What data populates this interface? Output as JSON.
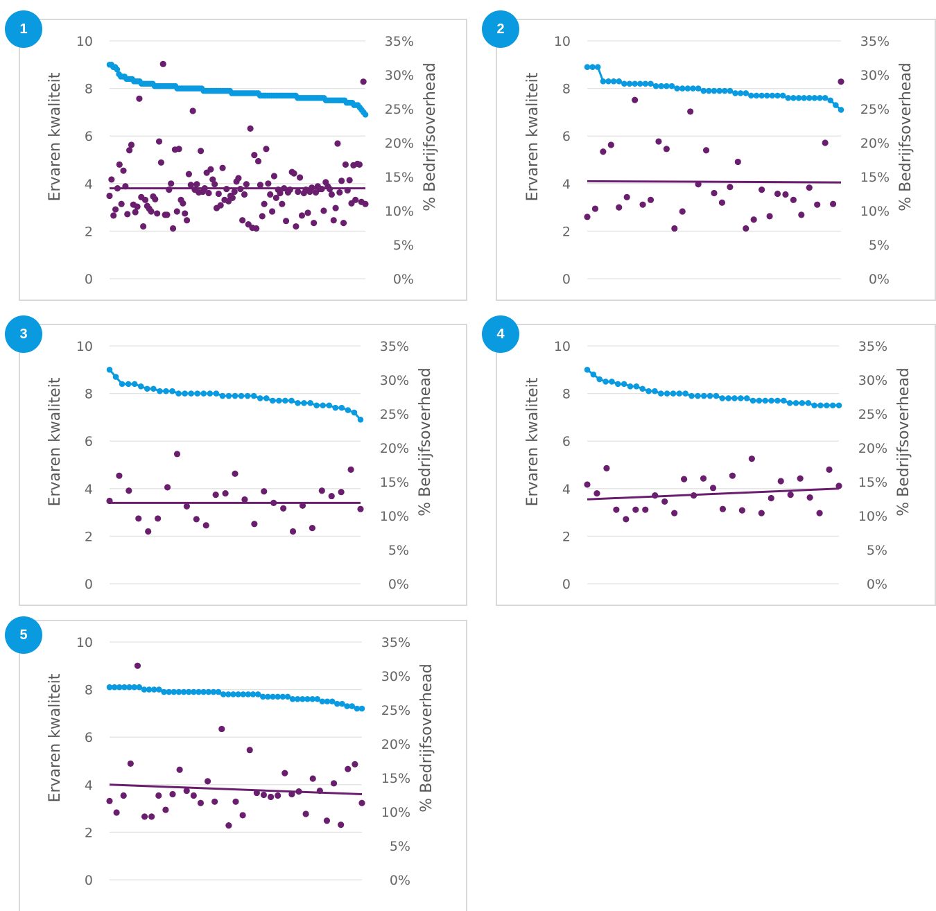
{
  "colors": {
    "quality": "#0a9ae0",
    "overhead": "#6a1f6e",
    "grid": "#e3e3e3",
    "axis_text": "#666666",
    "badge": "#0a9ae0",
    "frame": "#d9d9d9"
  },
  "chart_data": [
    {
      "type": "scatter",
      "badge": "1",
      "ylabel": "Ervaren kwaliteit",
      "y2label": "% Bedrijfsoverhead",
      "yticks": [
        "0",
        "2",
        "4",
        "6",
        "8",
        "10"
      ],
      "y2ticks": [
        "0%",
        "5%",
        "10%",
        "15%",
        "20%",
        "25%",
        "30%",
        "35%"
      ],
      "ylim": [
        0,
        10
      ],
      "y2lim": [
        0,
        35
      ],
      "grid": true,
      "series": [
        {
          "role": "quality",
          "values": [
            9.0,
            9.0,
            8.9,
            8.9,
            8.8,
            8.6,
            8.5,
            8.5,
            8.5,
            8.4,
            8.4,
            8.4,
            8.4,
            8.3,
            8.3,
            8.3,
            8.3,
            8.2,
            8.2,
            8.2,
            8.2,
            8.2,
            8.2,
            8.2,
            8.1,
            8.1,
            8.1,
            8.1,
            8.1,
            8.1,
            8.1,
            8.1,
            8.1,
            8.1,
            8.1,
            8.1,
            8.0,
            8.0,
            8.0,
            8.0,
            8.0,
            8.0,
            8.0,
            8.0,
            8.0,
            8.0,
            8.0,
            8.0,
            8.0,
            8.0,
            7.9,
            7.9,
            7.9,
            7.9,
            7.9,
            7.9,
            7.9,
            7.9,
            7.9,
            7.9,
            7.9,
            7.9,
            7.9,
            7.9,
            7.9,
            7.8,
            7.8,
            7.8,
            7.8,
            7.8,
            7.8,
            7.8,
            7.8,
            7.8,
            7.8,
            7.8,
            7.8,
            7.8,
            7.8,
            7.8,
            7.7,
            7.7,
            7.7,
            7.7,
            7.7,
            7.7,
            7.7,
            7.7,
            7.7,
            7.7,
            7.7,
            7.7,
            7.7,
            7.7,
            7.7,
            7.7,
            7.7,
            7.7,
            7.7,
            7.7,
            7.6,
            7.6,
            7.6,
            7.6,
            7.6,
            7.6,
            7.6,
            7.6,
            7.6,
            7.6,
            7.6,
            7.6,
            7.6,
            7.6,
            7.6,
            7.5,
            7.5,
            7.5,
            7.5,
            7.5,
            7.5,
            7.5,
            7.5,
            7.5,
            7.5,
            7.5,
            7.4,
            7.4,
            7.4,
            7.4,
            7.3,
            7.3,
            7.3,
            7.2,
            7.1,
            7.0,
            6.9
          ]
        },
        {
          "role": "overhead",
          "values": [
            12.2,
            14.6,
            9.3,
            10.2,
            13.3,
            16.8,
            11.0,
            15.9,
            13.6,
            9.5,
            18.9,
            19.7,
            10.9,
            9.8,
            10.6,
            26.5,
            12.0,
            7.7,
            11.6,
            10.7,
            10.3,
            9.9,
            12.1,
            11.7,
            9.6,
            20.2,
            17.1,
            31.6,
            9.4,
            9.4,
            13.1,
            14.0,
            7.4,
            19.0,
            9.9,
            19.1,
            11.6,
            11.1,
            9.6,
            8.6,
            15.4,
            13.8,
            24.7,
            13.1,
            13.9,
            12.7,
            18.8,
            12.8,
            13.3,
            15.6,
            12.6,
            16.1,
            14.6,
            13.9,
            10.4,
            12.5,
            10.8,
            16.3,
            11.6,
            13.2,
            11.4,
            12.2,
            11.9,
            12.8,
            14.3,
            14.8,
            13.2,
            8.6,
            12.4,
            13.9,
            8.0,
            22.1,
            7.5,
            18.2,
            7.4,
            17.3,
            13.8,
            9.2,
            11.0,
            19.1,
            14.0,
            12.4,
            9.9,
            15.1,
            11.9,
            13.1,
            12.6,
            11.0,
            13.3,
            8.5,
            12.7,
            13.1,
            15.7,
            15.5,
            7.7,
            12.8,
            14.9,
            9.3,
            12.6,
            13.1,
            9.7,
            12.8,
            13.4,
            8.2,
            12.7,
            13.6,
            13.2,
            13.2,
            10.0,
            14.2,
            13.6,
            13.2,
            12.4,
            8.6,
            10.4,
            19.9,
            12.7,
            14.4,
            8.2,
            16.8,
            13.0,
            14.5,
            11.1,
            16.7,
            11.6,
            16.9,
            16.8,
            11.3,
            29.0,
            11.0
          ]
        }
      ],
      "trend": {
        "start": 3.8,
        "end": 3.8
      }
    },
    {
      "type": "scatter",
      "badge": "2",
      "ylabel": "Ervaren kwaliteit",
      "y2label": "% Bedrijfsoverhead",
      "yticks": [
        "0",
        "2",
        "4",
        "6",
        "8",
        "10"
      ],
      "y2ticks": [
        "0%",
        "5%",
        "10%",
        "15%",
        "20%",
        "25%",
        "30%",
        "35%"
      ],
      "ylim": [
        0,
        10
      ],
      "y2lim": [
        0,
        35
      ],
      "grid": true,
      "series": [
        {
          "role": "quality",
          "values": [
            8.9,
            8.9,
            8.9,
            8.3,
            8.3,
            8.3,
            8.3,
            8.2,
            8.2,
            8.2,
            8.2,
            8.2,
            8.2,
            8.1,
            8.1,
            8.1,
            8.1,
            8.0,
            8.0,
            8.0,
            8.0,
            8.0,
            7.9,
            7.9,
            7.9,
            7.9,
            7.9,
            7.9,
            7.8,
            7.8,
            7.8,
            7.7,
            7.7,
            7.7,
            7.7,
            7.7,
            7.7,
            7.7,
            7.6,
            7.6,
            7.6,
            7.6,
            7.6,
            7.6,
            7.6,
            7.6,
            7.5,
            7.3,
            7.1
          ]
        },
        {
          "role": "overhead",
          "values": [
            9.1,
            10.3,
            18.7,
            19.7,
            10.5,
            12.0,
            26.3,
            10.9,
            11.6,
            20.2,
            19.1,
            7.4,
            9.9,
            24.6,
            13.9,
            18.9,
            12.6,
            11.2,
            13.5,
            17.2,
            7.4,
            8.7,
            13.1,
            9.2,
            12.5,
            12.4,
            11.6,
            9.4,
            13.4,
            10.9,
            20.0,
            11.0,
            29.0
          ]
        }
      ],
      "trend": {
        "start": 4.1,
        "end": 4.05
      }
    },
    {
      "type": "scatter",
      "badge": "3",
      "ylabel": "Ervaren kwaliteit",
      "y2label": "% Bedrijfsoverhead",
      "yticks": [
        "0",
        "2",
        "4",
        "6",
        "8",
        "10"
      ],
      "y2ticks": [
        "0%",
        "5%",
        "10%",
        "15%",
        "20%",
        "25%",
        "30%",
        "35%"
      ],
      "ylim": [
        0,
        10
      ],
      "y2lim": [
        0,
        35
      ],
      "grid": true,
      "series": [
        {
          "role": "quality",
          "values": [
            9.0,
            8.7,
            8.4,
            8.4,
            8.4,
            8.3,
            8.2,
            8.2,
            8.1,
            8.1,
            8.1,
            8.0,
            8.0,
            8.0,
            8.0,
            8.0,
            8.0,
            8.0,
            7.9,
            7.9,
            7.9,
            7.9,
            7.9,
            7.9,
            7.8,
            7.8,
            7.7,
            7.7,
            7.7,
            7.7,
            7.6,
            7.6,
            7.6,
            7.5,
            7.5,
            7.5,
            7.4,
            7.4,
            7.3,
            7.2,
            6.9
          ]
        },
        {
          "role": "overhead",
          "values": [
            12.2,
            15.9,
            13.7,
            9.6,
            7.7,
            9.6,
            14.2,
            19.1,
            11.4,
            9.5,
            8.6,
            13.1,
            13.3,
            16.2,
            12.4,
            8.8,
            13.6,
            11.9,
            11.1,
            7.7,
            11.5,
            8.2,
            13.7,
            12.9,
            13.5,
            16.8,
            11.0
          ]
        }
      ],
      "trend": {
        "start": 3.4,
        "end": 3.4
      }
    },
    {
      "type": "scatter",
      "badge": "4",
      "ylabel": "Ervaren kwaliteit",
      "y2label": "% Bedrijfsoverhead",
      "yticks": [
        "0",
        "2",
        "4",
        "6",
        "8",
        "10"
      ],
      "y2ticks": [
        "0%",
        "5%",
        "10%",
        "15%",
        "20%",
        "25%",
        "30%",
        "35%"
      ],
      "ylim": [
        0,
        10
      ],
      "y2lim": [
        0,
        35
      ],
      "grid": true,
      "series": [
        {
          "role": "quality",
          "values": [
            9.0,
            8.8,
            8.6,
            8.5,
            8.5,
            8.4,
            8.4,
            8.3,
            8.3,
            8.2,
            8.1,
            8.1,
            8.0,
            8.0,
            8.0,
            8.0,
            8.0,
            7.9,
            7.9,
            7.9,
            7.9,
            7.9,
            7.8,
            7.8,
            7.8,
            7.8,
            7.8,
            7.7,
            7.7,
            7.7,
            7.7,
            7.7,
            7.7,
            7.6,
            7.6,
            7.6,
            7.6,
            7.5,
            7.5,
            7.5,
            7.5,
            7.5
          ]
        },
        {
          "role": "overhead",
          "values": [
            14.6,
            13.3,
            17.0,
            10.9,
            9.5,
            10.9,
            10.9,
            13.0,
            12.1,
            10.4,
            15.4,
            13.0,
            15.5,
            14.1,
            11.0,
            15.9,
            10.8,
            18.4,
            10.4,
            12.6,
            15.1,
            13.1,
            15.5,
            12.7,
            10.4,
            16.8,
            14.4
          ]
        }
      ],
      "trend": {
        "start": 3.55,
        "end": 4.0
      }
    },
    {
      "type": "scatter",
      "badge": "5",
      "ylabel": "Ervaren kwaliteit",
      "y2label": "% Bedrijfsoverhead",
      "yticks": [
        "0",
        "2",
        "4",
        "6",
        "8",
        "10"
      ],
      "y2ticks": [
        "0%",
        "5%",
        "10%",
        "15%",
        "20%",
        "25%",
        "30%",
        "35%"
      ],
      "ylim": [
        0,
        10
      ],
      "y2lim": [
        0,
        35
      ],
      "grid": true,
      "series": [
        {
          "role": "quality",
          "values": [
            8.1,
            8.1,
            8.1,
            8.1,
            8.1,
            8.1,
            8.1,
            8.0,
            8.0,
            8.0,
            8.0,
            7.9,
            7.9,
            7.9,
            7.9,
            7.9,
            7.9,
            7.9,
            7.9,
            7.9,
            7.9,
            7.9,
            7.9,
            7.8,
            7.8,
            7.8,
            7.8,
            7.8,
            7.8,
            7.8,
            7.8,
            7.7,
            7.7,
            7.7,
            7.7,
            7.7,
            7.7,
            7.6,
            7.6,
            7.6,
            7.6,
            7.6,
            7.6,
            7.5,
            7.5,
            7.5,
            7.4,
            7.4,
            7.3,
            7.3,
            7.2,
            7.2
          ]
        },
        {
          "role": "overhead",
          "values": [
            11.6,
            9.9,
            12.4,
            17.1,
            31.5,
            9.3,
            9.3,
            12.4,
            10.3,
            12.6,
            16.2,
            13.1,
            12.4,
            11.3,
            14.5,
            11.5,
            22.2,
            8.0,
            11.5,
            9.5,
            19.1,
            12.8,
            12.5,
            12.2,
            12.4,
            15.7,
            12.6,
            13.0,
            9.7,
            14.9,
            13.1,
            8.7,
            14.2,
            8.1,
            16.3,
            17.0,
            11.3
          ]
        }
      ],
      "trend": {
        "start": 4.0,
        "end": 3.6
      }
    }
  ]
}
